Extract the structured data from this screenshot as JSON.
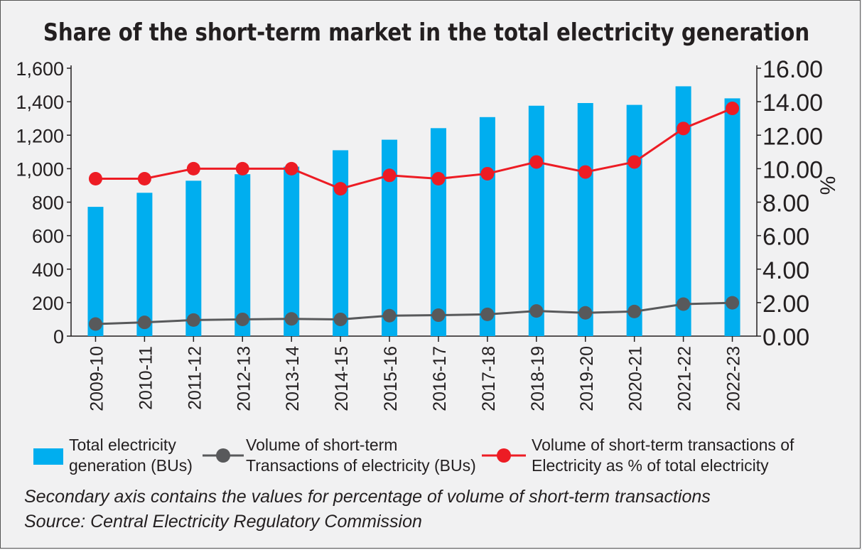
{
  "chart_data": {
    "type": "bar+line",
    "title": "Share of the short-term market in the total electricity generation",
    "categories": [
      "2009-10",
      "2010-11",
      "2011-12",
      "2012-13",
      "2013-14",
      "2014-15",
      "2015-16",
      "2016-17",
      "2017-18",
      "2018-19",
      "2019-20",
      "2020-21",
      "2021-22",
      "2022-23"
    ],
    "series": [
      {
        "name": "Total electricity generation (BUs)",
        "type": "bar",
        "axis": "left",
        "color": "#00aeef",
        "values": [
          772,
          856,
          928,
          967,
          1012,
          1110,
          1173,
          1242,
          1308,
          1376,
          1392,
          1381,
          1492,
          1420
        ]
      },
      {
        "name": "Volume of short-term Transactions of electricity (BUs)",
        "type": "line",
        "axis": "left",
        "color": "#58595b",
        "values": [
          72,
          82,
          96,
          100,
          103,
          100,
          122,
          125,
          130,
          150,
          139,
          147,
          191,
          199
        ]
      },
      {
        "name": "Volume of short-term transactions of Electricity as % of total electricity",
        "type": "line",
        "axis": "right",
        "color": "#ed1c24",
        "values": [
          9.4,
          9.4,
          10.0,
          10.0,
          10.0,
          8.8,
          9.6,
          9.4,
          9.7,
          10.4,
          9.8,
          10.4,
          12.4,
          13.6
        ]
      }
    ],
    "y_left": {
      "min": 0,
      "max": 1600,
      "ticks": [
        "0",
        "200",
        "400",
        "600",
        "800",
        "1,000",
        "1,200",
        "1,400",
        "1,600"
      ]
    },
    "y_right": {
      "min": 0,
      "max": 16,
      "label": "%",
      "ticks": [
        "0.00",
        "2.00",
        "4.00",
        "6.00",
        "8.00",
        "10.00",
        "12.00",
        "14.00",
        "16.00"
      ]
    },
    "grid": false,
    "legend_position": "bottom"
  },
  "legend": {
    "bar_line1": "Total electricity",
    "bar_line2": "generation (BUs)",
    "gray_line1": "Volume of short-term",
    "gray_line2": "Transactions of electricity (BUs)",
    "red_line1": "Volume of short-term transactions of",
    "red_line2": "Electricity as % of total electricity"
  },
  "notes": {
    "secondary": "Secondary axis contains the values for percentage of volume of short-term transactions",
    "source": "Source: Central Electricity Regulatory Commission"
  }
}
